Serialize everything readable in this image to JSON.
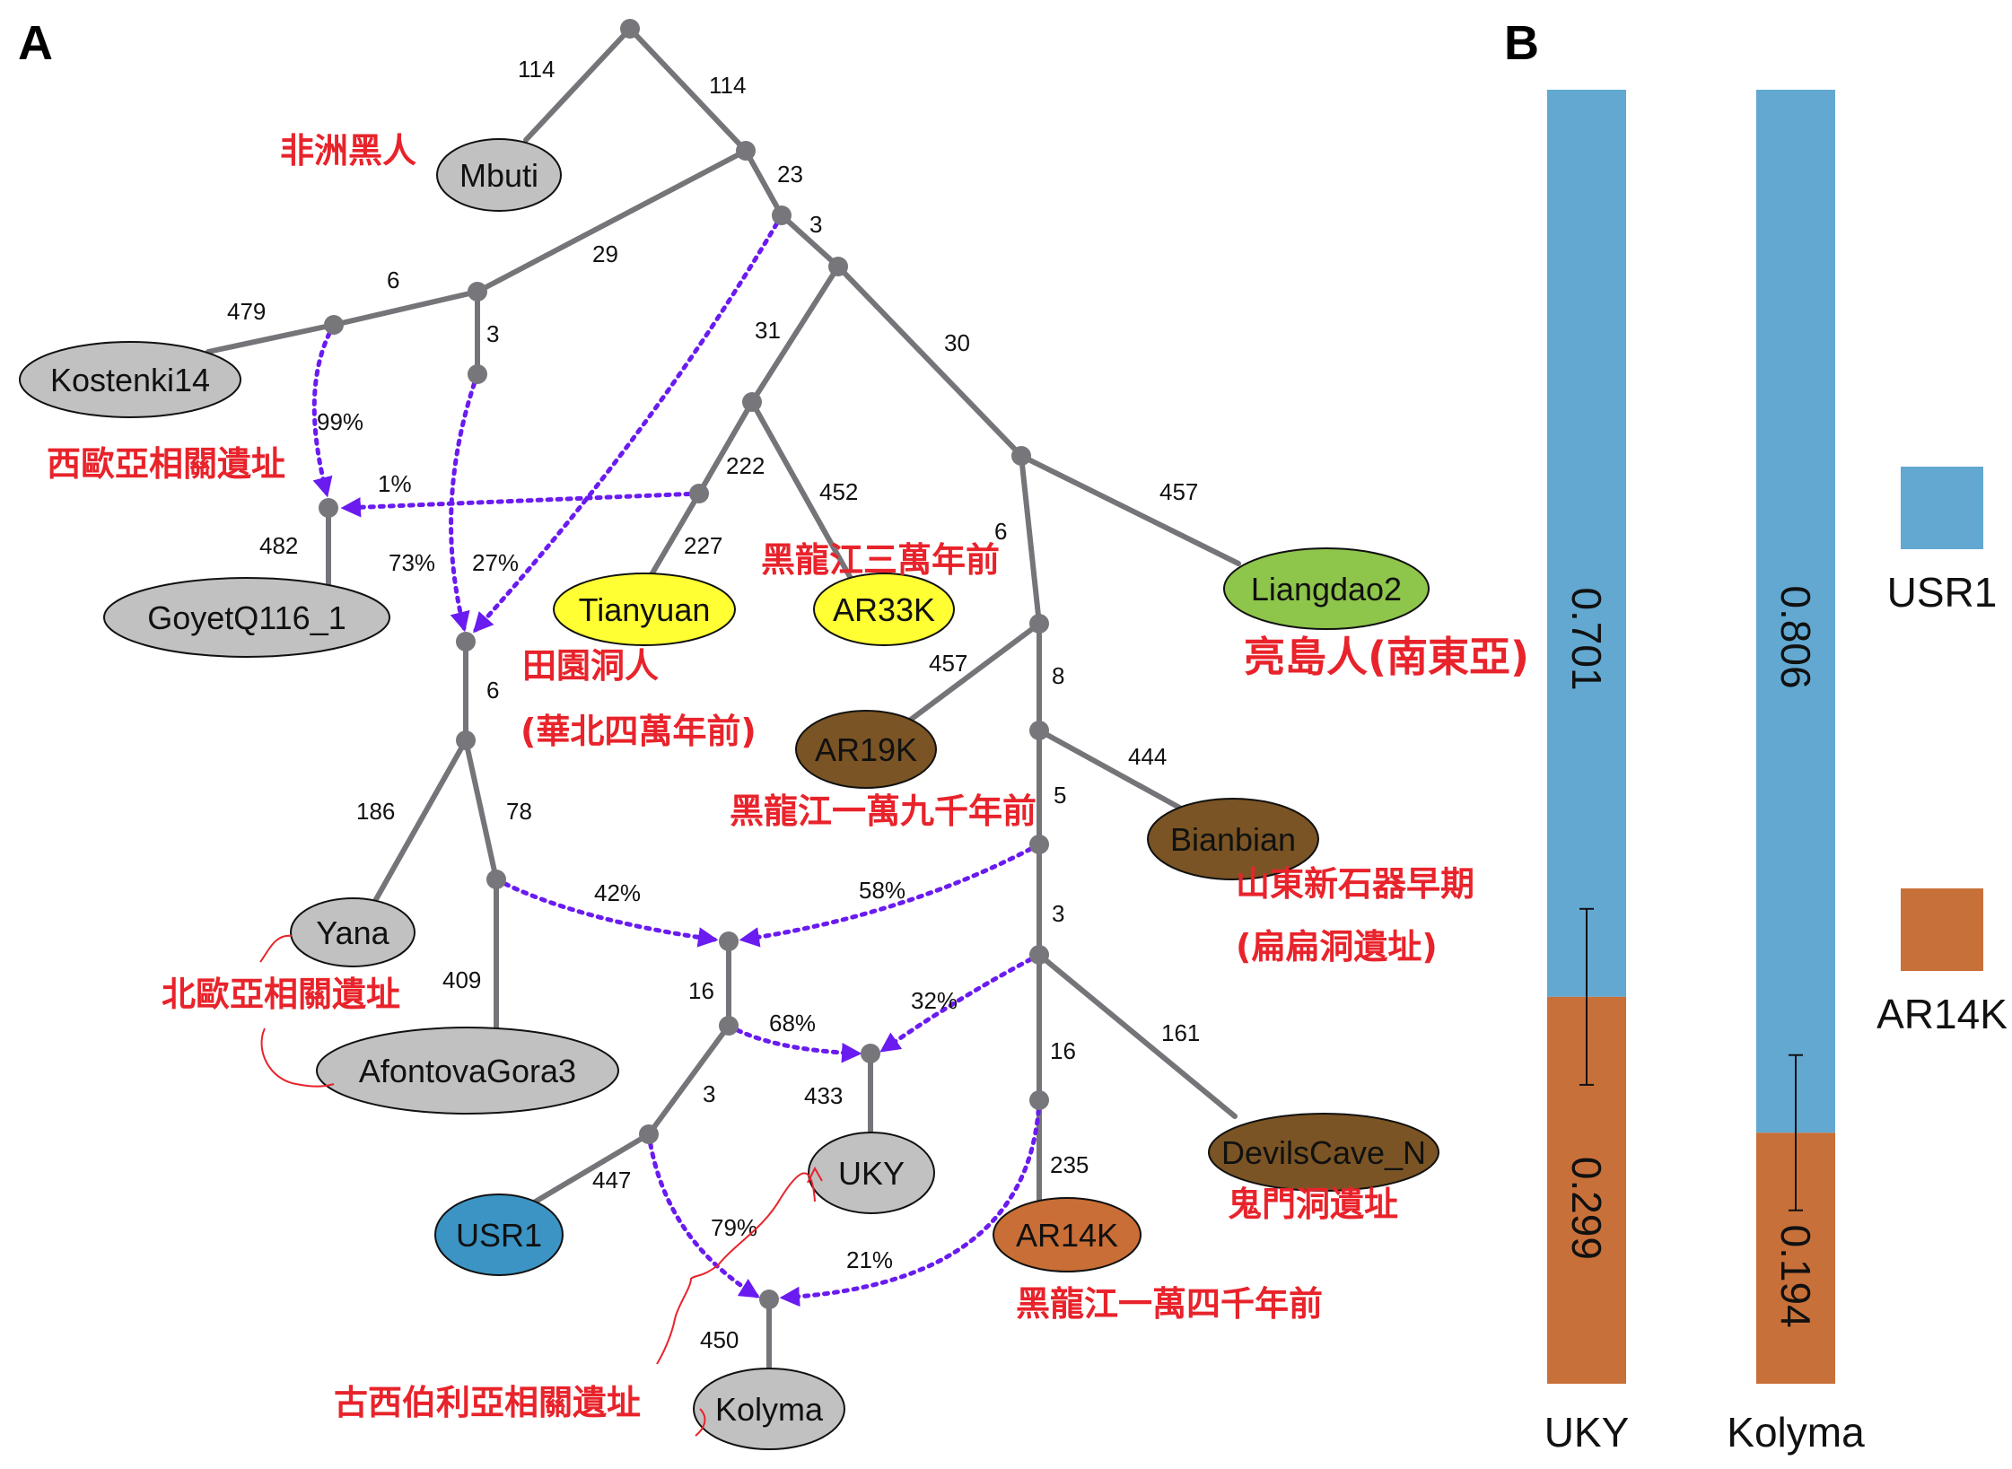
{
  "panels": {
    "a": "A",
    "b": "B"
  },
  "colors": {
    "grey": "#c1c1c1",
    "yellow": "#ffff33",
    "green": "#8ec54b",
    "brown": "#7a5424",
    "blue": "#3b94c4",
    "orange": "#c86e36",
    "usr1": "#62a8d1",
    "ar14k": "#c8703a",
    "annotation": "#e8232b",
    "admixture": "#6a1bf0",
    "edge": "#757579"
  },
  "leaves": {
    "mbuti": "Mbuti",
    "kostenki14": "Kostenki14",
    "goyet": "GoyetQ116_1",
    "tianyuan": "Tianyuan",
    "ar33k": "AR33K",
    "liangdao2": "Liangdao2",
    "ar19k": "AR19K",
    "bianbian": "Bianbian",
    "yana": "Yana",
    "afontova": "AfontovaGora3",
    "uky": "UKY",
    "usr1": "USR1",
    "ar14k": "AR14K",
    "devils": "DevilsCave_N",
    "kolyma": "Kolyma"
  },
  "branch_lengths": {
    "root_mbuti": "114",
    "root_right": "114",
    "b23": "23",
    "b3a": "3",
    "b29": "29",
    "b6a": "6",
    "b479": "479",
    "b3b": "3",
    "b31": "31",
    "b30": "30",
    "b222": "222",
    "b452": "452",
    "b227": "227",
    "b457a": "457",
    "b6b": "6",
    "b482": "482",
    "b6c": "6",
    "b457b": "457",
    "b8": "8",
    "b444": "444",
    "b5": "5",
    "b186": "186",
    "b78": "78",
    "b409": "409",
    "b3c": "3",
    "b16a": "16",
    "b161": "161",
    "b16b": "16",
    "b3d": "3",
    "b433": "433",
    "b447": "447",
    "b235": "235",
    "b450": "450"
  },
  "admixture": {
    "p99": "99%",
    "p1": "1%",
    "p73": "73%",
    "p27": "27%",
    "p42": "42%",
    "p58": "58%",
    "p68": "68%",
    "p32": "32%",
    "p79": "79%",
    "p21": "21%"
  },
  "annotations": {
    "mbuti": "非洲黑人",
    "west_eurasia": "西歐亞相關遺址",
    "ar33k": "黑龍江三萬年前",
    "tianyuan_1": "田園洞人",
    "tianyuan_2": "(華北四萬年前)",
    "liangdao": "亮島人(南東亞)",
    "ar19k": "黑龍江一萬九千年前",
    "bianbian_1": "山東新石器早期",
    "bianbian_2": "(扁扁洞遺址)",
    "north_eurasia": "北歐亞相關遺址",
    "devils": "鬼門洞遺址",
    "ar14k": "黑龍江一萬四千年前",
    "paleo_siberia": "古西伯利亞相關遺址"
  },
  "chart_data": {
    "type": "bar",
    "stacked": true,
    "categories": [
      "UKY",
      "Kolyma"
    ],
    "series": [
      {
        "name": "USR1",
        "values": [
          0.701,
          0.806
        ]
      },
      {
        "name": "AR14K",
        "values": [
          0.299,
          0.194
        ]
      }
    ],
    "labels": {
      "uky_usr1": "0.701",
      "uky_ar14k": "0.299",
      "kolyma_usr1": "0.806",
      "kolyma_ar14k": "0.194"
    },
    "legend": {
      "placement": "right",
      "items": [
        "USR1",
        "AR14K"
      ]
    },
    "ylim": [
      0,
      1
    ],
    "error_bars": true
  }
}
